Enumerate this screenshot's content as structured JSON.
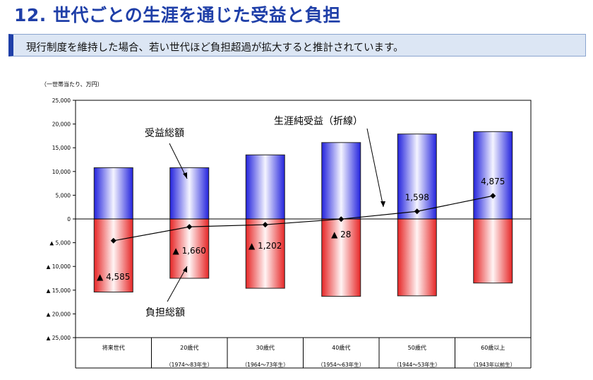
{
  "header": {
    "title": "12. 世代ごとの生涯を通じた受益と負担",
    "subtitle": "現行制度を維持した場合、若い世代ほど負担超過が拡大すると推計されています。"
  },
  "chart_data": {
    "type": "bar",
    "unit_note": "（一世帯当たり、万円）",
    "categories": [
      {
        "label": "将来世代",
        "years": ""
      },
      {
        "label": "20歳代",
        "years": "（1974～83年生）"
      },
      {
        "label": "30歳代",
        "years": "（1964～73年生）"
      },
      {
        "label": "40歳代",
        "years": "（1954～63年生）"
      },
      {
        "label": "50歳代",
        "years": "（1944～53年生）"
      },
      {
        "label": "60歳以上",
        "years": "（1943年以前生）"
      }
    ],
    "series": [
      {
        "name": "受益総額",
        "values": [
          10800,
          10800,
          13500,
          16100,
          17900,
          18400
        ],
        "color": "#3a3ae6"
      },
      {
        "name": "負担総額",
        "values": [
          -15400,
          -12500,
          -14600,
          -16300,
          -16200,
          -13500
        ],
        "color": "#e63a3a"
      },
      {
        "name": "生涯純受益（折線）",
        "values": [
          -4585,
          -1660,
          -1202,
          -28,
          1598,
          4875
        ],
        "color": "#000000"
      }
    ],
    "data_labels": [
      "▲ 4,585",
      "▲ 1,660",
      "▲ 1,202",
      "▲ 28",
      "1,598",
      "4,875"
    ],
    "ylim": [
      -25000,
      25000
    ],
    "yticks": [
      25000,
      20000,
      15000,
      10000,
      5000,
      0,
      -5000,
      -10000,
      -15000,
      -20000,
      -25000
    ],
    "ytick_labels": [
      "25,000",
      "20,000",
      "15,000",
      "10,000",
      "5,000",
      "0",
      "▲ 5,000",
      "▲ 10,000",
      "▲ 15,000",
      "▲ 20,000",
      "▲ 25,000"
    ],
    "annotations": [
      "受益総額",
      "負担総額",
      "生涯純受益（折線）"
    ],
    "grid": false
  }
}
